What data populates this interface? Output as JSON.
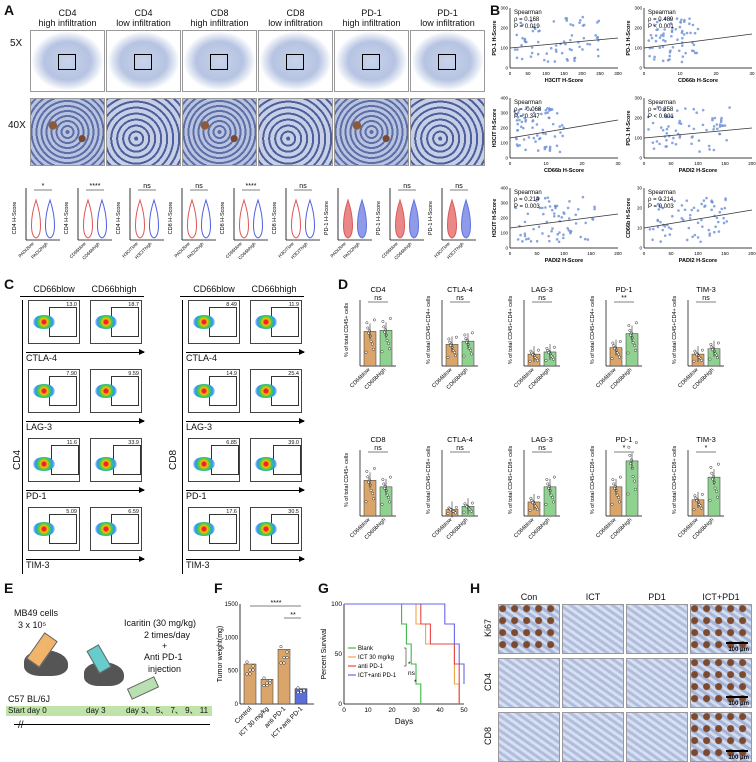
{
  "panels": {
    "a": "A",
    "b": "B",
    "c": "C",
    "d": "D",
    "e": "E",
    "f": "F",
    "g": "G",
    "h": "H"
  },
  "panel_a": {
    "columns": [
      {
        "title": "CD4",
        "sub": "high infiltration"
      },
      {
        "title": "CD4",
        "sub": "low infiltration"
      },
      {
        "title": "CD8",
        "sub": "high infiltration"
      },
      {
        "title": "CD8",
        "sub": "low infiltration"
      },
      {
        "title": "PD-1",
        "sub": "high infiltration"
      },
      {
        "title": "PD-1",
        "sub": "low infiltration"
      }
    ],
    "row_labels": [
      "5X",
      "40X"
    ],
    "violins": [
      {
        "ylabel": "CD4 H-Score",
        "sig": "*",
        "groups": [
          "PADI2low",
          "PADI2high"
        ]
      },
      {
        "ylabel": "CD4 H-Score",
        "sig": "****",
        "groups": [
          "CD66blow",
          "CD66bhigh"
        ]
      },
      {
        "ylabel": "CD4 H-Score",
        "sig": "ns",
        "groups": [
          "H3CITlow",
          "H3CIThigh"
        ]
      },
      {
        "ylabel": "CD8 H-Score",
        "sig": "ns",
        "groups": [
          "PADI2low",
          "PADI2high"
        ]
      },
      {
        "ylabel": "CD8 H-Score",
        "sig": "****",
        "groups": [
          "CD66blow",
          "CD66bhigh"
        ]
      },
      {
        "ylabel": "CD8 H-Score",
        "sig": "ns",
        "groups": [
          "H3CITlow",
          "H3CIThigh"
        ]
      },
      {
        "ylabel": "PD-1 H-Score",
        "sig": "",
        "groups": [
          "PADI2low",
          "PADI2high"
        ]
      },
      {
        "ylabel": "PD-1 H-Score",
        "sig": "ns",
        "groups": [
          "CD66blow",
          "CD66bhigh"
        ]
      },
      {
        "ylabel": "PD-1 H-Score",
        "sig": "ns",
        "groups": [
          "H3CITlow",
          "H3CIThigh"
        ]
      }
    ]
  },
  "panel_b": {
    "plots": [
      {
        "ylabel": "PD-1 H-Score",
        "xlabel": "H3CIT H-Score",
        "method": "Spearman",
        "rho": "ρ = 0.168",
        "p": "P = 0.019",
        "xticks": [
          "0",
          "50",
          "100",
          "150",
          "200",
          "250",
          "300"
        ],
        "yticks": [
          "0",
          "100",
          "200",
          "300"
        ]
      },
      {
        "ylabel": "PD-1 H-Score",
        "xlabel": "CD66b H-Score",
        "method": "Spearman",
        "rho": "ρ = 0.489",
        "p": "P < 0.001",
        "xticks": [
          "0",
          "10",
          "20",
          "30"
        ],
        "yticks": [
          "0",
          "100",
          "200",
          "300"
        ]
      },
      {
        "ylabel": "H3CIT H-Score",
        "xlabel": "CD66b H-Score",
        "method": "Spearman",
        "rho": "ρ = -0.068",
        "p": "P = 0.347",
        "xticks": [
          "0",
          "10",
          "20",
          "30"
        ],
        "yticks": [
          "0",
          "100",
          "200",
          "300",
          "400"
        ]
      },
      {
        "ylabel": "PD-1 H-Score",
        "xlabel": "PADI2 H-Score",
        "method": "Spearman",
        "rho": "ρ = 0.358",
        "p": "P < 0.001",
        "xticks": [
          "0",
          "50",
          "100",
          "150",
          "200"
        ],
        "yticks": [
          "0",
          "100",
          "200",
          "300"
        ]
      },
      {
        "ylabel": "H3CIT H-Score",
        "xlabel": "PADI2 H-Score",
        "method": "Spearman",
        "rho": "ρ = 0.214",
        "p": "P = 0.003",
        "xticks": [
          "0",
          "50",
          "100",
          "150",
          "200"
        ],
        "yticks": [
          "0",
          "100",
          "200",
          "300",
          "400"
        ]
      },
      {
        "ylabel": "CD66b H-Score",
        "xlabel": "PADI2 H-Score",
        "method": "Spearman",
        "rho": "ρ = 0.214",
        "p": "P = 0.003",
        "xticks": [
          "0",
          "50",
          "100",
          "150",
          "200"
        ],
        "yticks": [
          "0",
          "10",
          "20",
          "30"
        ]
      }
    ]
  },
  "panel_c": {
    "cd4_headers": [
      "CD66blow",
      "CD66bhigh"
    ],
    "cd8_headers": [
      "CD66blow",
      "CD66bhigh"
    ],
    "markers": [
      "CTLA-4",
      "LAG-3",
      "PD-1",
      "TIM-3"
    ],
    "cd4_values": [
      [
        "13.0",
        "18.7"
      ],
      [
        "7.90",
        "9.59"
      ],
      [
        "11.6",
        "33.9"
      ],
      [
        "5.09",
        "6.59"
      ]
    ],
    "cd8_values": [
      [
        "8.49",
        "11.9"
      ],
      [
        "14.9",
        "25.4"
      ],
      [
        "6.85",
        "39.0"
      ],
      [
        "17.6",
        "30.5"
      ]
    ],
    "side_cd4": "CD4",
    "side_cd8": "CD8"
  },
  "panel_d": {
    "row1": [
      {
        "title": "CD4",
        "ylabel": "% of total CD45+ cells",
        "sig": "ns"
      },
      {
        "title": "CTLA-4",
        "ylabel": "% of total CD45+CD4+ cells",
        "sig": "ns"
      },
      {
        "title": "LAG-3",
        "ylabel": "% of total CD45+CD4+ cells",
        "sig": "ns"
      },
      {
        "title": "PD-1",
        "ylabel": "% of total CD45+CD4+ cells",
        "sig": "**"
      },
      {
        "title": "TIM-3",
        "ylabel": "% of total CD45+CD4+ cells",
        "sig": "ns"
      }
    ],
    "row2": [
      {
        "title": "CD8",
        "ylabel": "% of total CD45+ cells",
        "sig": "ns"
      },
      {
        "title": "CTLA-4",
        "ylabel": "% of total CD45+CD8+ cells",
        "sig": "ns"
      },
      {
        "title": "LAG-3",
        "ylabel": "% of total CD45+CD8+ cells",
        "sig": "ns"
      },
      {
        "title": "PD-1",
        "ylabel": "% of total CD45+CD8+ cells",
        "sig": "*"
      },
      {
        "title": "TIM-3",
        "ylabel": "% of total CD45+CD8+ cells",
        "sig": "*"
      }
    ],
    "xgroups": [
      "CD66blow",
      "CD66bhigh"
    ],
    "colors": {
      "low": "#d9a56b",
      "high": "#8fd18f"
    }
  },
  "panel_e": {
    "cells": "MB49 cells",
    "dose": "3 x 10⁵",
    "drug": "Icaritin  (30 mg/kg)",
    "freq": "2 times/day",
    "plus": "+",
    "anti": "Anti PD-1",
    "inj": "injection",
    "strain": "C57 BL/6J",
    "start": "Start day 0",
    "day3": "day 3",
    "days": "day 3、 5、 7、 9、 11"
  },
  "chart_data": [
    {
      "type": "bar",
      "title": "",
      "ylabel": "Tumor weight(mg)",
      "categories": [
        "Control",
        "ICT 30 mg/kg",
        "anti PD-1",
        "ICT+anti PD-1"
      ],
      "values": [
        600,
        370,
        820,
        230
      ],
      "colors": [
        "#d9a56b",
        "#d9a56b",
        "#d9a56b",
        "#5b6fd6"
      ],
      "ylim": [
        0,
        1500
      ],
      "yticks": [
        "0",
        "500",
        "1000",
        "1500"
      ],
      "sig": [
        "****",
        "**"
      ]
    },
    {
      "type": "line",
      "title": "",
      "ylabel": "Percent Survival",
      "xlabel": "Days",
      "xlim": [
        0,
        50
      ],
      "ylim": [
        0,
        100
      ],
      "xticks": [
        "0",
        "10",
        "20",
        "30",
        "40",
        "50"
      ],
      "yticks": [
        "0",
        "50",
        "100"
      ],
      "series": [
        {
          "name": "Blank",
          "color": "#3cb94a",
          "x": [
            0,
            20,
            24,
            26,
            28,
            30,
            32
          ],
          "y": [
            100,
            100,
            80,
            60,
            40,
            20,
            0
          ]
        },
        {
          "name": "ICT 30 mg/kg",
          "color": "#f2a444",
          "x": [
            0,
            26,
            30,
            34,
            42,
            46,
            48
          ],
          "y": [
            100,
            100,
            80,
            60,
            60,
            20,
            0
          ]
        },
        {
          "name": "anti PD-1",
          "color": "#e84545",
          "x": [
            0,
            28,
            32,
            36,
            44,
            46,
            48
          ],
          "y": [
            100,
            100,
            80,
            60,
            60,
            40,
            0
          ]
        },
        {
          "name": "ICT+anti PD-1",
          "color": "#6666ee",
          "x": [
            0,
            36,
            42,
            46,
            48,
            50
          ],
          "y": [
            100,
            100,
            80,
            60,
            40,
            20
          ]
        }
      ],
      "sig": [
        "*",
        "ns",
        "*"
      ]
    }
  ],
  "panel_h": {
    "cols": [
      "Con",
      "ICT",
      "PD1",
      "ICT+PD1"
    ],
    "rows": [
      "Ki67",
      "CD4",
      "CD8"
    ],
    "scale": "100 μm"
  }
}
